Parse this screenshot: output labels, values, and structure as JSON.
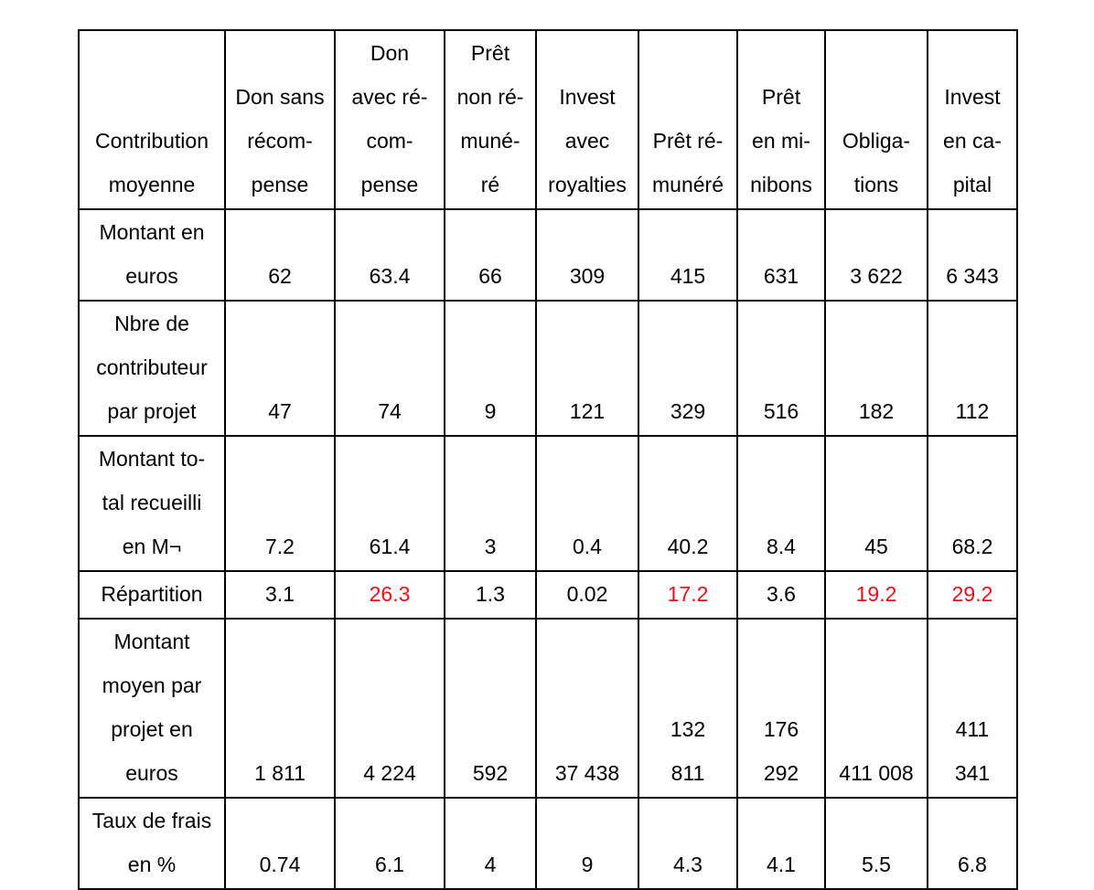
{
  "header": {
    "row_label": [
      "Contribution",
      "moyenne"
    ],
    "columns": [
      [
        "Don sans",
        "récom-",
        "pense"
      ],
      [
        "Don",
        "avec ré-",
        "com-",
        "pense"
      ],
      [
        "Prêt",
        "non ré-",
        "muné-",
        "ré"
      ],
      [
        "Invest",
        "avec",
        "royalties"
      ],
      [
        "Prêt ré-",
        "munéré"
      ],
      [
        "Prêt",
        "en mi-",
        "nibons"
      ],
      [
        "Obliga-",
        "tions"
      ],
      [
        "Invest",
        "en ca-",
        "pital"
      ]
    ]
  },
  "rows": [
    {
      "label": [
        "Montant en",
        "euros"
      ],
      "values": [
        [
          "62"
        ],
        [
          "63.4"
        ],
        [
          "66"
        ],
        [
          "309"
        ],
        [
          "415"
        ],
        [
          "631"
        ],
        [
          "3 622"
        ],
        [
          "6 343"
        ]
      ]
    },
    {
      "label": [
        "Nbre de",
        "contributeur",
        "par projet"
      ],
      "values": [
        [
          "47"
        ],
        [
          "74"
        ],
        [
          "9"
        ],
        [
          "121"
        ],
        [
          "329"
        ],
        [
          "516"
        ],
        [
          "182"
        ],
        [
          "112"
        ]
      ]
    },
    {
      "label": [
        "Montant to-",
        "tal recueilli",
        "en M¬"
      ],
      "values": [
        [
          "7.2"
        ],
        [
          "61.4"
        ],
        [
          "3"
        ],
        [
          "0.4"
        ],
        [
          "40.2"
        ],
        [
          "8.4"
        ],
        [
          "45"
        ],
        [
          "68.2"
        ]
      ]
    },
    {
      "label": [
        "Répartition"
      ],
      "values": [
        [
          "3.1"
        ],
        [
          "26.3"
        ],
        [
          "1.3"
        ],
        [
          "0.02"
        ],
        [
          "17.2"
        ],
        [
          "3.6"
        ],
        [
          "19.2"
        ],
        [
          "29.2"
        ]
      ],
      "highlight_color": "#e8101b",
      "highlighted_columns": [
        1,
        4,
        6,
        7
      ]
    },
    {
      "label": [
        "Montant",
        "moyen par",
        "projet en",
        "euros"
      ],
      "values": [
        [
          "1 811"
        ],
        [
          "4 224"
        ],
        [
          "592"
        ],
        [
          "37 438"
        ],
        [
          "132",
          "811"
        ],
        [
          "176",
          "292"
        ],
        [
          "411 008"
        ],
        [
          "411",
          "341"
        ]
      ]
    },
    {
      "label": [
        "Taux de frais",
        "en %"
      ],
      "values": [
        [
          "0.74"
        ],
        [
          "6.1"
        ],
        [
          "4"
        ],
        [
          "9"
        ],
        [
          "4.3"
        ],
        [
          "4.1"
        ],
        [
          "5.5"
        ],
        [
          "6.8"
        ]
      ]
    }
  ]
}
